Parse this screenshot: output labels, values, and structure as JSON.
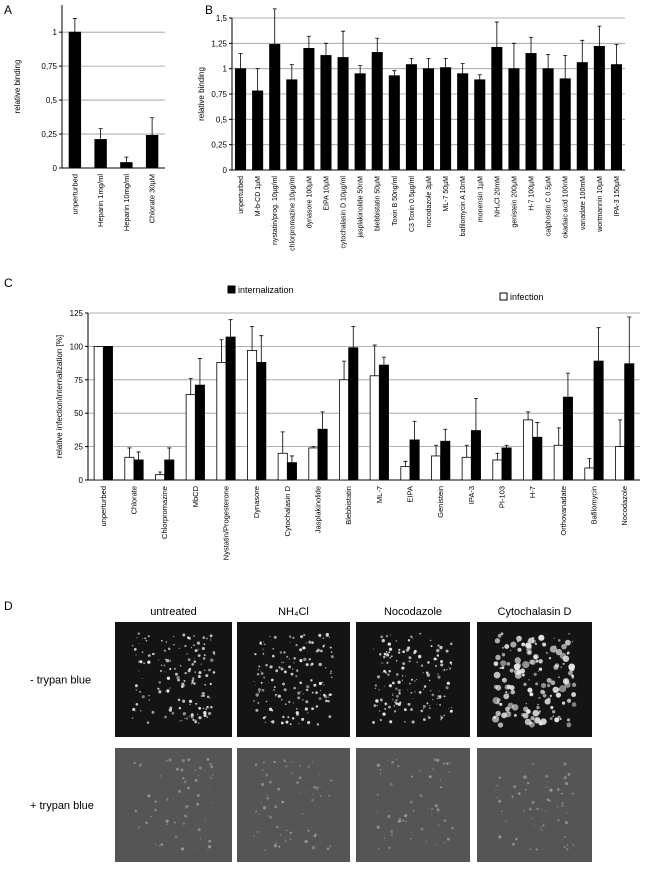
{
  "chart_data": [
    {
      "type": "bar",
      "panel_label": "A",
      "y_label": "relative binding",
      "categories": [
        "unperturbed",
        "Heparin 1mg/ml",
        "Heparin 10mg/ml",
        "Chlorate 30µM"
      ],
      "values": [
        1,
        0.21,
        0.04,
        0.24
      ],
      "errors": [
        0.1,
        0.08,
        0.04,
        0.13
      ],
      "color": "#000000",
      "ylim": [
        0,
        1.2
      ],
      "yticks": [
        0,
        {
          "value": 0.25,
          "label": "0,25"
        },
        {
          "value": 0.5,
          "label": "0,5"
        },
        {
          "value": 0.75,
          "label": "0,75"
        },
        1
      ],
      "grid": true
    },
    {
      "type": "bar",
      "panel_label": "B",
      "y_label": "relative binding",
      "categories": [
        "unperturbed",
        "M-b-CD 1µM",
        "nystatin/prog. 10µg/ml",
        "chlorpromazine 10µg/ml",
        "dynasore 100µM",
        "EIPA 10µM",
        "cytochalasin D 10µg/ml",
        "jasplakinolide 50nM",
        "blebbistatin 50µM",
        "Toxin B 50ng/ml",
        "C3 Toxin 0.5µg/ml",
        "nocodazole 3µM",
        "ML-7 50µM",
        "bafilomycin A 10nM",
        "monensin 1µM",
        "NH₄Cl 20mM",
        "genistein 200µM",
        "H-7 100µM",
        "calphostin C 0.5µM",
        "okadaic acid 100nM",
        "vanadate 100mM",
        "wortmannin 10µM",
        "IPA-3 150µM"
      ],
      "values": [
        1.0,
        0.78,
        1.24,
        0.89,
        1.2,
        1.13,
        1.11,
        0.95,
        1.16,
        0.93,
        1.04,
        1.0,
        1.01,
        0.95,
        0.89,
        1.21,
        1.0,
        1.15,
        1.0,
        0.9,
        1.06,
        1.22,
        1.04
      ],
      "errors": [
        0.15,
        0.22,
        0.35,
        0.15,
        0.12,
        0.12,
        0.26,
        0.08,
        0.14,
        0.05,
        0.06,
        0.1,
        0.09,
        0.1,
        0.05,
        0.25,
        0.25,
        0.16,
        0.14,
        0.23,
        0.22,
        0.2,
        0.2
      ],
      "color": "#000000",
      "ylim": [
        0,
        1.5
      ],
      "yticks": [
        0,
        {
          "value": 0.25,
          "label": "0,25"
        },
        {
          "value": 0.5,
          "label": "0,5"
        },
        {
          "value": 0.75,
          "label": "0,75"
        },
        1,
        {
          "value": 1.25,
          "label": "1,25"
        },
        {
          "value": 1.5,
          "label": "1,5"
        }
      ],
      "grid": true
    },
    {
      "type": "grouped_bar",
      "panel_label": "C",
      "y_label": "relative infection/internalization [%]",
      "categories": [
        "unperturbed",
        "Chlorate",
        "Chlorpromazine",
        "MbCD",
        "Nystatin/Progesterone",
        "Dynasore",
        "Cytochalasin D",
        "Jasplakinolide",
        "Blebbistatin",
        "ML-7",
        "EIPA",
        "Genistein",
        "IPA-3",
        "PI-103",
        "H-7",
        "Orthovanadate",
        "Bafilomycin",
        "Nocodazole"
      ],
      "series": [
        {
          "name": "infection",
          "color": "#ffffff",
          "values": [
            100,
            17,
            4,
            64,
            88,
            97,
            20,
            24,
            75,
            78,
            10,
            18,
            17,
            15,
            45,
            26,
            9,
            25
          ],
          "errors": [
            0,
            7,
            2,
            12,
            17,
            18,
            16,
            1,
            14,
            23,
            4,
            8,
            9,
            5,
            6,
            13,
            7,
            20
          ]
        },
        {
          "name": "internalization",
          "color": "#000000",
          "values": [
            100,
            15,
            15,
            71,
            107,
            88,
            13,
            38,
            99,
            86,
            30,
            29,
            37,
            24,
            32,
            62,
            89,
            87
          ],
          "errors": [
            0,
            6,
            9,
            20,
            13,
            20,
            5,
            13,
            16,
            6,
            14,
            9,
            24,
            2,
            11,
            18,
            25,
            35
          ]
        }
      ],
      "ylim": [
        0,
        125
      ],
      "yticks": [
        0,
        25,
        50,
        75,
        100,
        125
      ],
      "grid": true
    }
  ],
  "panel_d": {
    "panel_label": "D",
    "columns": [
      "untreated",
      "NH₄Cl",
      "Nocodazole",
      "Cytochalasin D"
    ],
    "rows": [
      "- trypan blue",
      "+ trypan blue"
    ]
  }
}
